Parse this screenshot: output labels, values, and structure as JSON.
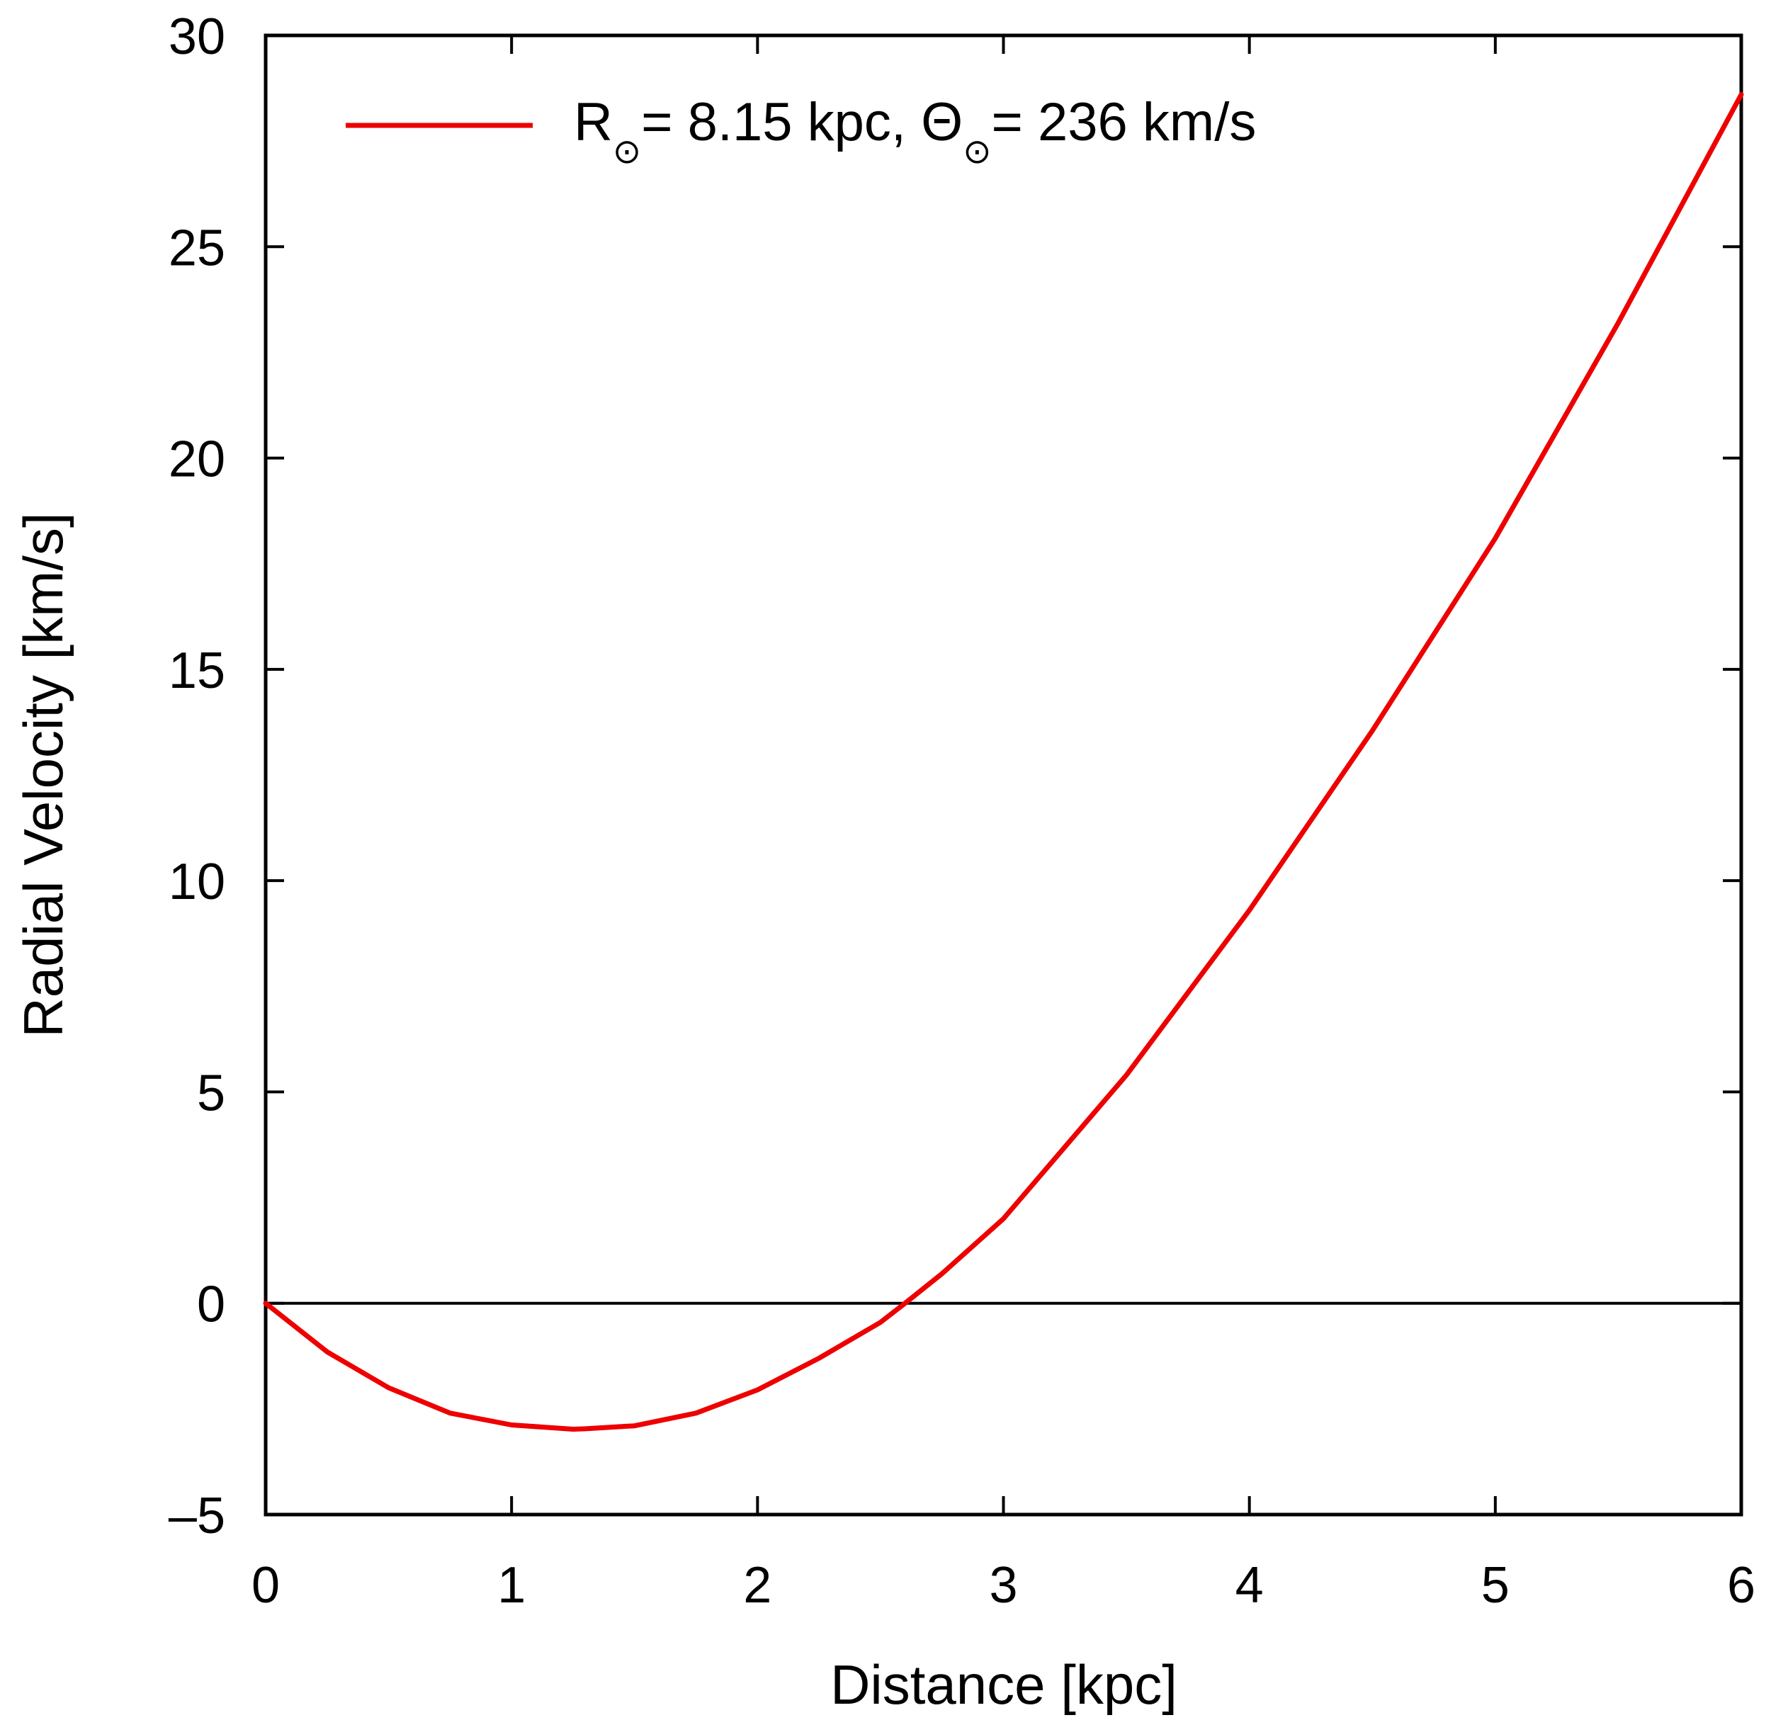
{
  "chart_data": {
    "type": "line",
    "xlabel": "Distance [kpc]",
    "ylabel": "Radial Velocity [km/s]",
    "xlim": [
      0,
      6
    ],
    "ylim": [
      -5,
      30
    ],
    "xticks": [
      0,
      1,
      2,
      3,
      4,
      5,
      6
    ],
    "yticks": [
      -5,
      0,
      5,
      10,
      15,
      20,
      25,
      30
    ],
    "ytick_labels": [
      "–5",
      "0",
      "5",
      "10",
      "15",
      "20",
      "25",
      "30"
    ],
    "grid": false,
    "zero_line": true,
    "legend_position": "top",
    "legend": {
      "r_symbol": "R",
      "r_rest": "= 8.15 kpc, ",
      "theta_symbol": "Θ",
      "theta_rest": "= 236 km/s",
      "sun_subscript": "⊙"
    },
    "series": [
      {
        "color": "#ee0000",
        "x": [
          0,
          0.25,
          0.5,
          0.75,
          1.0,
          1.25,
          1.3,
          1.5,
          1.75,
          2.0,
          2.25,
          2.5,
          2.6,
          2.75,
          3.0,
          3.5,
          4.0,
          4.5,
          5.0,
          5.5,
          6.0
        ],
        "y": [
          0,
          -1.15,
          -2.0,
          -2.6,
          -2.88,
          -2.98,
          -2.97,
          -2.9,
          -2.6,
          -2.05,
          -1.3,
          -0.45,
          0,
          0.7,
          2.0,
          5.4,
          9.3,
          13.55,
          18.1,
          23.2,
          28.6
        ]
      }
    ]
  }
}
